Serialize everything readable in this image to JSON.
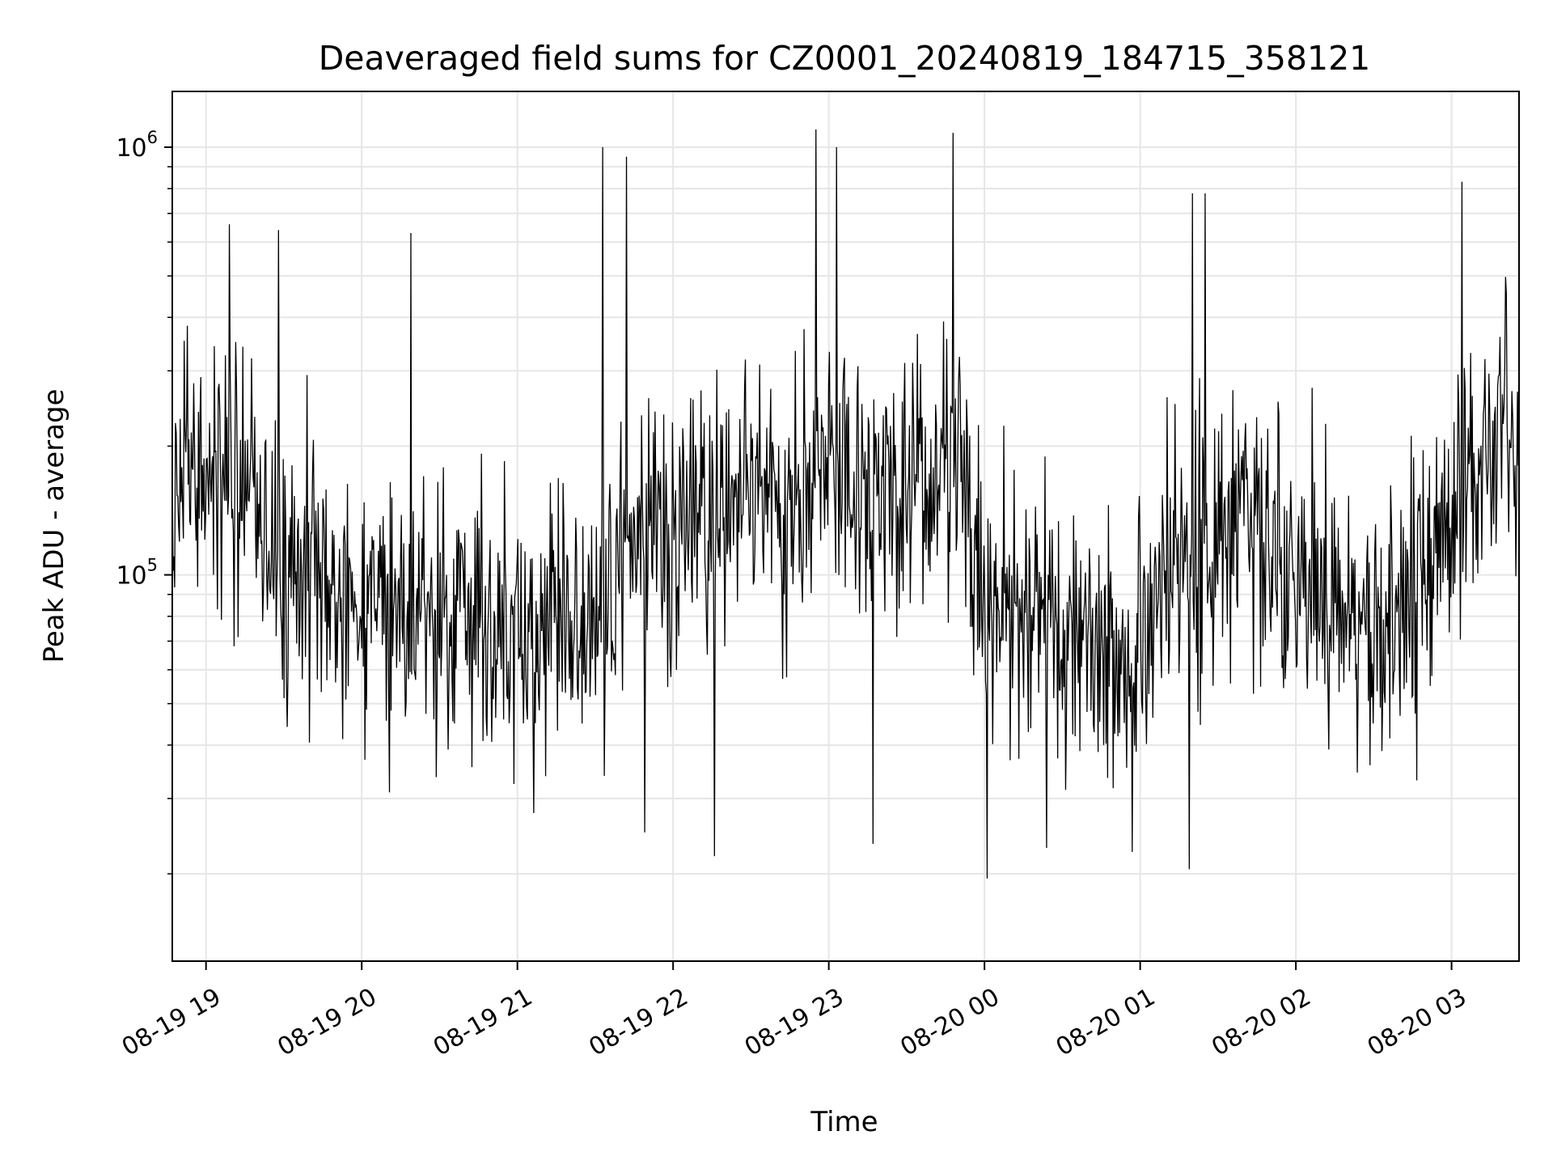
{
  "chart_data": {
    "type": "line",
    "title": "Deaveraged field sums for CZ0001_20240819_184715_358121",
    "xlabel": "Time",
    "ylabel": "Peak ADU - average",
    "yscale": "log",
    "xlim": [
      "2024-08-19 18:47",
      "2024-08-20 03:26"
    ],
    "ylim": [
      12500,
      1350000
    ],
    "grid": true,
    "line_color": "#000000",
    "x_ticks": [
      {
        "label": "08-19 19",
        "time": "2024-08-19 19:00"
      },
      {
        "label": "08-19 20",
        "time": "2024-08-19 20:00"
      },
      {
        "label": "08-19 21",
        "time": "2024-08-19 21:00"
      },
      {
        "label": "08-19 22",
        "time": "2024-08-19 22:00"
      },
      {
        "label": "08-19 23",
        "time": "2024-08-19 23:00"
      },
      {
        "label": "08-20 00",
        "time": "2024-08-20 00:00"
      },
      {
        "label": "08-20 01",
        "time": "2024-08-20 01:00"
      },
      {
        "label": "08-20 02",
        "time": "2024-08-20 02:00"
      },
      {
        "label": "08-20 03",
        "time": "2024-08-20 03:00"
      }
    ],
    "y_ticks": [
      {
        "base": "10",
        "exp": "5",
        "value": 100000
      },
      {
        "base": "10",
        "exp": "6",
        "value": 1000000
      }
    ],
    "series": [
      {
        "envelope": [
          [
            "2024-08-19 18:47",
            160000
          ],
          [
            "2024-08-19 19:00",
            190000
          ],
          [
            "2024-08-19 19:15",
            175000
          ],
          [
            "2024-08-19 19:30",
            110000
          ],
          [
            "2024-08-19 19:45",
            90000
          ],
          [
            "2024-08-19 20:00",
            85000
          ],
          [
            "2024-08-19 20:30",
            78000
          ],
          [
            "2024-08-19 21:00",
            72000
          ],
          [
            "2024-08-19 21:30",
            80000
          ],
          [
            "2024-08-19 21:45",
            110000
          ],
          [
            "2024-08-19 22:00",
            120000
          ],
          [
            "2024-08-19 22:30",
            150000
          ],
          [
            "2024-08-19 23:00",
            175000
          ],
          [
            "2024-08-19 23:30",
            160000
          ],
          [
            "2024-08-19 23:50",
            200000
          ],
          [
            "2024-08-20 00:00",
            85000
          ],
          [
            "2024-08-20 00:30",
            75000
          ],
          [
            "2024-08-20 01:00",
            65000
          ],
          [
            "2024-08-20 01:20",
            115000
          ],
          [
            "2024-08-20 01:40",
            140000
          ],
          [
            "2024-08-20 02:00",
            100000
          ],
          [
            "2024-08-20 02:30",
            75000
          ],
          [
            "2024-08-20 02:50",
            90000
          ],
          [
            "2024-08-20 03:10",
            190000
          ],
          [
            "2024-08-20 03:26",
            220000
          ]
        ],
        "notable_peaks": [
          [
            "2024-08-19 19:09",
            660000
          ],
          [
            "2024-08-19 19:28",
            640000
          ],
          [
            "2024-08-19 20:19",
            630000
          ],
          [
            "2024-08-19 21:33",
            1000000
          ],
          [
            "2024-08-19 21:42",
            950000
          ],
          [
            "2024-08-19 22:55",
            1100000
          ],
          [
            "2024-08-19 23:03",
            1000000
          ],
          [
            "2024-08-19 23:48",
            1080000
          ],
          [
            "2024-08-20 01:20",
            780000
          ],
          [
            "2024-08-20 01:25",
            780000
          ],
          [
            "2024-08-20 03:04",
            830000
          ]
        ],
        "notable_troughs": [
          [
            "2024-08-19 21:49",
            25000
          ],
          [
            "2024-08-19 22:16",
            22000
          ],
          [
            "2024-08-19 23:17",
            23500
          ],
          [
            "2024-08-20 00:01",
            19500
          ],
          [
            "2024-08-20 00:24",
            23000
          ],
          [
            "2024-08-20 00:57",
            22500
          ],
          [
            "2024-08-20 01:19",
            20500
          ]
        ]
      }
    ]
  }
}
